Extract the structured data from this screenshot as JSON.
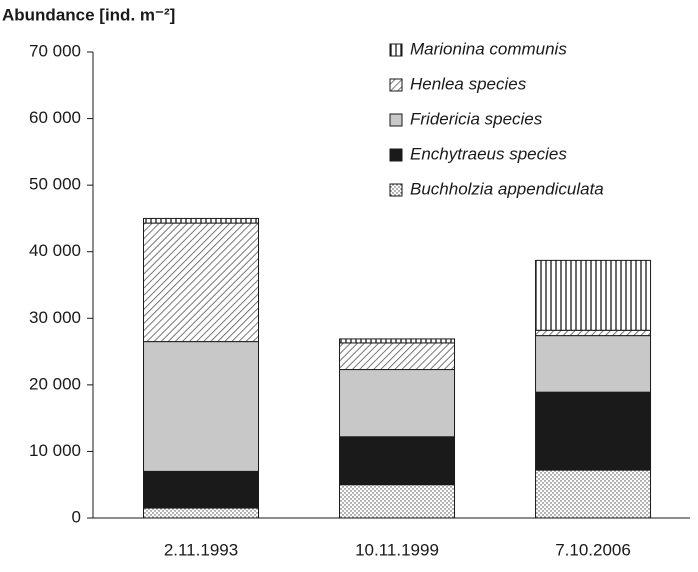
{
  "chart_data": {
    "type": "stacked_bar",
    "y_label": "Abundance [ind.  m⁻²]",
    "categories": [
      "2.11.1993",
      "10.11.1999",
      "7.10.2006"
    ],
    "series": [
      {
        "name": "Buchholzia appendiculata",
        "color": "#444444",
        "pattern": "dots",
        "values": [
          1500,
          5000,
          7200
        ]
      },
      {
        "name": "Enchytraeus species",
        "color": "#1a1a1a",
        "pattern": "solid",
        "values": [
          5500,
          7200,
          11700
        ]
      },
      {
        "name": "Fridericia species",
        "color": "#c8c8c8",
        "pattern": "solid",
        "values": [
          19500,
          10100,
          8500
        ]
      },
      {
        "name": "Henlea species",
        "color": "#555555",
        "pattern": "hatch",
        "values": [
          17800,
          4000,
          800
        ]
      },
      {
        "name": "Marionina communis",
        "color": "#1a1a1a",
        "pattern": "vertical",
        "values": [
          700,
          600,
          10500
        ]
      }
    ],
    "ylim": [
      0,
      70000
    ],
    "yticks": [
      0,
      {
        "value": 10000,
        "label": "10 000"
      },
      {
        "value": 20000,
        "label": "20 000"
      },
      {
        "value": 30000,
        "label": "30 000"
      },
      {
        "value": 40000,
        "label": "40 000"
      },
      {
        "value": 50000,
        "label": "50 000"
      },
      {
        "value": 60000,
        "label": "60 000"
      },
      {
        "value": 70000,
        "label": "70 000"
      }
    ],
    "legend": "upper right"
  }
}
